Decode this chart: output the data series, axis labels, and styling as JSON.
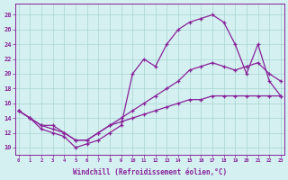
{
  "xlabel": "Windchill (Refroidissement éolien,°C)",
  "bg_color": "#d4f0f0",
  "grid_color": "#a8d4d4",
  "line_color": "#882299",
  "x_ticks": [
    0,
    1,
    2,
    3,
    4,
    5,
    6,
    7,
    8,
    9,
    10,
    11,
    12,
    13,
    14,
    15,
    16,
    17,
    18,
    19,
    20,
    21,
    22,
    23
  ],
  "y_ticks": [
    10,
    12,
    14,
    16,
    18,
    20,
    22,
    24,
    26,
    28
  ],
  "xlim": [
    -0.3,
    23.3
  ],
  "ylim": [
    9,
    29.5
  ],
  "line1_x": [
    0,
    1,
    2,
    3,
    4,
    5,
    6,
    7,
    8,
    9,
    10,
    11,
    12,
    13,
    14,
    15,
    16,
    17,
    18,
    19,
    20,
    21,
    22,
    23
  ],
  "line1_y": [
    15,
    14,
    12.5,
    12,
    11.5,
    10,
    10.5,
    11,
    12,
    13,
    20,
    22,
    21,
    24,
    26,
    27,
    27.5,
    28,
    27,
    24,
    20,
    24,
    19,
    17
  ],
  "line2_x": [
    0,
    1,
    2,
    3,
    4,
    5,
    6,
    7,
    8,
    9,
    10,
    11,
    12,
    13,
    14,
    15,
    16,
    17,
    18,
    19,
    20,
    21,
    22,
    23
  ],
  "line2_y": [
    15,
    14,
    13,
    13,
    12,
    11,
    11,
    12,
    13,
    14,
    15,
    16,
    17,
    18,
    19,
    20.5,
    21,
    21.5,
    21,
    20.5,
    21,
    21.5,
    20,
    19
  ],
  "line3_x": [
    0,
    1,
    2,
    3,
    4,
    5,
    6,
    7,
    8,
    9,
    10,
    11,
    12,
    13,
    14,
    15,
    16,
    17,
    18,
    19,
    20,
    21,
    22,
    23
  ],
  "line3_y": [
    15,
    14,
    13,
    12.5,
    12,
    11,
    11,
    12,
    13,
    13.5,
    14,
    14.5,
    15,
    15.5,
    16,
    16.5,
    16.5,
    17,
    17,
    17,
    17,
    17,
    17,
    17
  ]
}
